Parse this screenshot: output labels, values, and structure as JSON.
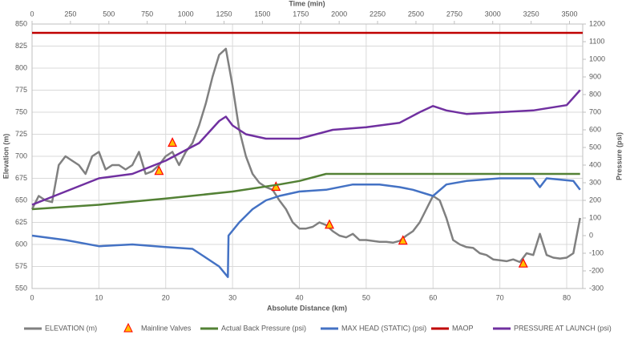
{
  "chart_data": {
    "type": "line",
    "xlabel": "Absolute Distance (km)",
    "x2label": "Time (min)",
    "ylabel": "Elevation (m)",
    "y2label": "Pressure (psi)",
    "xlim": [
      0,
      82.4
    ],
    "xticks": [
      0,
      10,
      20,
      30,
      40,
      50,
      60,
      70,
      80
    ],
    "x2lim": [
      0,
      3586
    ],
    "x2ticks": [
      0,
      250,
      500,
      750,
      1000,
      1250,
      1500,
      1750,
      2000,
      2250,
      2500,
      2750,
      3000,
      3250,
      3500
    ],
    "ylim": [
      550,
      850
    ],
    "yticks": [
      550,
      575,
      600,
      625,
      650,
      675,
      700,
      725,
      750,
      775,
      800,
      825,
      850
    ],
    "y2lim": [
      -300,
      1200
    ],
    "y2ticks": [
      -300,
      -200,
      -100,
      0,
      100,
      200,
      300,
      400,
      500,
      600,
      700,
      800,
      900,
      1000,
      1100,
      1200
    ],
    "grid": true,
    "series": [
      {
        "name": "ELEVATION (m)",
        "color": "#808080",
        "axis": "y",
        "kind": "line",
        "x": [
          0,
          1,
          2,
          3,
          4,
          5,
          6,
          7,
          8,
          9,
          10,
          11,
          12,
          13,
          14,
          15,
          16,
          17,
          18,
          19,
          20,
          21,
          22,
          23,
          24,
          25,
          26,
          27,
          28,
          29,
          30,
          31,
          32,
          33,
          34,
          35,
          36,
          37,
          38,
          39,
          40,
          41,
          42,
          43,
          44,
          45,
          46,
          47,
          48,
          49,
          50,
          51,
          52,
          53,
          54,
          55,
          56,
          57,
          58,
          59,
          60,
          61,
          62,
          63,
          64,
          65,
          66,
          67,
          68,
          69,
          70,
          71,
          72,
          73,
          74,
          75,
          76,
          77,
          78,
          79,
          80,
          81,
          82
        ],
        "values": [
          640,
          655,
          650,
          648,
          690,
          700,
          695,
          690,
          680,
          700,
          705,
          685,
          690,
          690,
          685,
          690,
          705,
          680,
          683,
          690,
          700,
          705,
          690,
          705,
          715,
          735,
          760,
          790,
          815,
          822,
          780,
          730,
          700,
          680,
          670,
          665,
          662,
          650,
          640,
          625,
          618,
          618,
          620,
          625,
          622,
          615,
          610,
          608,
          612,
          605,
          605,
          604,
          603,
          603,
          602,
          604,
          610,
          615,
          625,
          640,
          655,
          650,
          630,
          605,
          600,
          597,
          596,
          590,
          588,
          583,
          582,
          581,
          583,
          580,
          590,
          588,
          612,
          588,
          585,
          584,
          585,
          590,
          630
        ]
      },
      {
        "name": "Mainline Valves",
        "color": "#ff0000",
        "axis": "y",
        "kind": "scatter",
        "x": [
          19,
          21,
          36.5,
          44.5,
          55.5,
          73.5
        ],
        "values": [
          683,
          715,
          665,
          622,
          604,
          578
        ]
      },
      {
        "name": "Actual Back Pressure (psi)",
        "color": "#538135",
        "axis": "y2",
        "kind": "line",
        "x": [
          0,
          10,
          20,
          30,
          37,
          40,
          44,
          82
        ],
        "values": [
          150,
          175,
          210,
          250,
          290,
          310,
          350,
          350
        ]
      },
      {
        "name": "MAX HEAD (STATIC) (psi)",
        "color": "#4472c4",
        "axis": "y2",
        "kind": "line",
        "x": [
          0,
          5,
          10,
          15,
          20,
          24,
          26,
          28,
          29.3,
          29.4,
          31,
          33,
          35,
          37,
          40,
          44,
          48,
          52,
          55,
          57,
          60,
          62,
          65,
          70,
          75,
          76,
          77,
          81,
          82
        ],
        "values": [
          0,
          -25,
          -60,
          -50,
          -65,
          -75,
          -125,
          -175,
          -235,
          0,
          75,
          150,
          200,
          225,
          250,
          260,
          290,
          290,
          275,
          260,
          225,
          290,
          310,
          325,
          325,
          275,
          325,
          310,
          260
        ]
      },
      {
        "name": "MAOP",
        "color": "#c00000",
        "axis": "y2",
        "kind": "line",
        "x": [
          0,
          82.4
        ],
        "values": [
          1150,
          1150
        ]
      },
      {
        "name": "PRESSURE AT LAUNCH (psi)",
        "color": "#7030a0",
        "axis": "y2",
        "kind": "line",
        "x": [
          0,
          5,
          10,
          15,
          20,
          25,
          28,
          29,
          30,
          32,
          35,
          40,
          45,
          50,
          55,
          58,
          60,
          62,
          65,
          70,
          75,
          80,
          82
        ],
        "values": [
          175,
          250,
          325,
          350,
          425,
          525,
          650,
          675,
          625,
          575,
          550,
          550,
          600,
          615,
          640,
          700,
          735,
          710,
          690,
          700,
          710,
          740,
          825
        ]
      }
    ]
  }
}
